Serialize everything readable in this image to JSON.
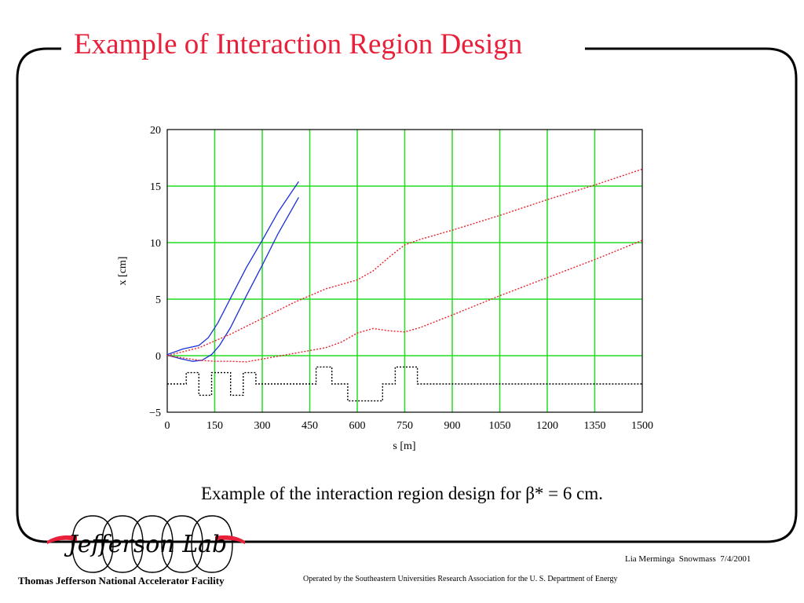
{
  "slide": {
    "title": "Example of Interaction Region Design",
    "caption": "Example of the interaction region design for β* = 6 cm.",
    "author_note": "Lia Merminga  Snowmass  7/4/2001",
    "facility_name": "Thomas Jefferson National Accelerator Facility",
    "operated_by": "Operated by the Southeastern Universities Research Association for the U. S. Department of Energy",
    "logo_text": "Jefferson Lab"
  },
  "colors": {
    "title": "#e8203a",
    "grid": "#22dd22",
    "blue_series": "#1a2fd6",
    "red_series": "#e8202a",
    "element_layout": "#000000"
  },
  "chart_data": {
    "type": "line",
    "xlabel": "s [m]",
    "ylabel": "x [cm]",
    "xlim": [
      0,
      1500
    ],
    "ylim": [
      -5,
      20
    ],
    "xticks": [
      0,
      150,
      300,
      450,
      600,
      750,
      900,
      1050,
      1200,
      1350,
      1500
    ],
    "yticks": [
      -5,
      0,
      5,
      10,
      15,
      20
    ],
    "xtick_labels": [
      "0",
      "150",
      "300",
      "450",
      "600",
      "750",
      "900",
      "1050",
      "1200",
      "1350",
      "1500"
    ],
    "ytick_labels": [
      "−5",
      "0",
      "5",
      "10",
      "15",
      "20"
    ],
    "grid": true,
    "series": [
      {
        "color": "#1a2fd6",
        "style": "solid",
        "x": [
          0,
          50,
          100,
          130,
          160,
          200,
          250,
          300,
          350,
          415
        ],
        "y": [
          0.1,
          0.6,
          0.9,
          1.6,
          2.9,
          5.1,
          7.8,
          10.2,
          12.7,
          15.4
        ]
      },
      {
        "color": "#1a2fd6",
        "style": "solid",
        "x": [
          0,
          40,
          80,
          110,
          140,
          165,
          200,
          250,
          300,
          350,
          415
        ],
        "y": [
          0.05,
          -0.25,
          -0.5,
          -0.4,
          0.1,
          0.9,
          2.5,
          5.3,
          8.0,
          10.8,
          14.0
        ]
      },
      {
        "color": "#e8202a",
        "style": "dotted",
        "x": [
          0,
          100,
          200,
          300,
          400,
          500,
          600,
          650,
          700,
          750,
          800,
          900,
          1050,
          1200,
          1350,
          1500
        ],
        "y": [
          0,
          0.7,
          1.9,
          3.3,
          4.7,
          5.9,
          6.7,
          7.5,
          8.7,
          9.8,
          10.3,
          11.1,
          12.4,
          13.8,
          15.1,
          16.5
        ]
      },
      {
        "color": "#e8202a",
        "style": "dotted",
        "x": [
          0,
          50,
          100,
          150,
          200,
          250,
          300,
          400,
          500,
          550,
          600,
          650,
          700,
          750,
          800,
          900,
          1050,
          1200,
          1350,
          1500
        ],
        "y": [
          0,
          -0.2,
          -0.4,
          -0.5,
          -0.5,
          -0.55,
          -0.3,
          0.2,
          0.7,
          1.2,
          2.0,
          2.4,
          2.2,
          2.1,
          2.5,
          3.6,
          5.3,
          6.9,
          8.5,
          10.2
        ]
      },
      {
        "color": "#000000",
        "style": "dotted",
        "x": [
          0,
          60,
          60,
          100,
          100,
          140,
          140,
          200,
          200,
          240,
          240,
          280,
          280,
          470,
          470,
          520,
          520,
          570,
          570,
          680,
          680,
          720,
          720,
          790,
          790,
          1500
        ],
        "y": [
          -2.5,
          -2.5,
          -1.5,
          -1.5,
          -3.5,
          -3.5,
          -1.5,
          -1.5,
          -3.5,
          -3.5,
          -1.5,
          -1.5,
          -2.5,
          -2.5,
          -1.0,
          -1.0,
          -2.5,
          -2.5,
          -4.0,
          -4.0,
          -2.5,
          -2.5,
          -1.0,
          -1.0,
          -2.5,
          -2.5
        ]
      }
    ]
  }
}
